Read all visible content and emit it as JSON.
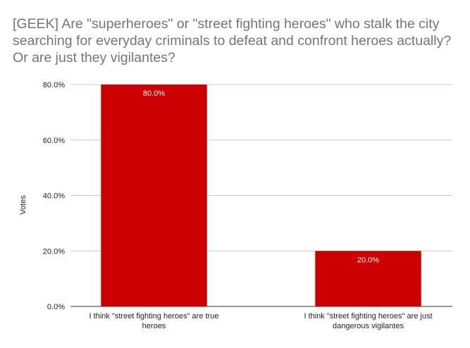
{
  "chart_data": {
    "type": "bar",
    "title": "[GEEK] Are \"superheroes\" or \"street fighting heroes\" who stalk the city searching for everyday criminals to defeat and confront heroes actually? Or are just they vigilantes?",
    "xlabel": "",
    "ylabel": "Votes",
    "categories": [
      [
        "I think \"street fighting heroes\" are true",
        "heroes"
      ],
      [
        "I think \"street fighting heroes\" are just",
        "dangerous vigilantes"
      ]
    ],
    "values": [
      80.0,
      20.0
    ],
    "data_labels": [
      "80.0%",
      "20.0%"
    ],
    "ylim": [
      0,
      80
    ],
    "yticks": [
      0,
      20,
      40,
      60,
      80
    ],
    "ytick_labels": [
      "0.0%",
      "20.0%",
      "40.0%",
      "60.0%",
      "80.0%"
    ],
    "grid": true,
    "bar_color": "#cc0000",
    "grid_color": "#cccccc"
  }
}
